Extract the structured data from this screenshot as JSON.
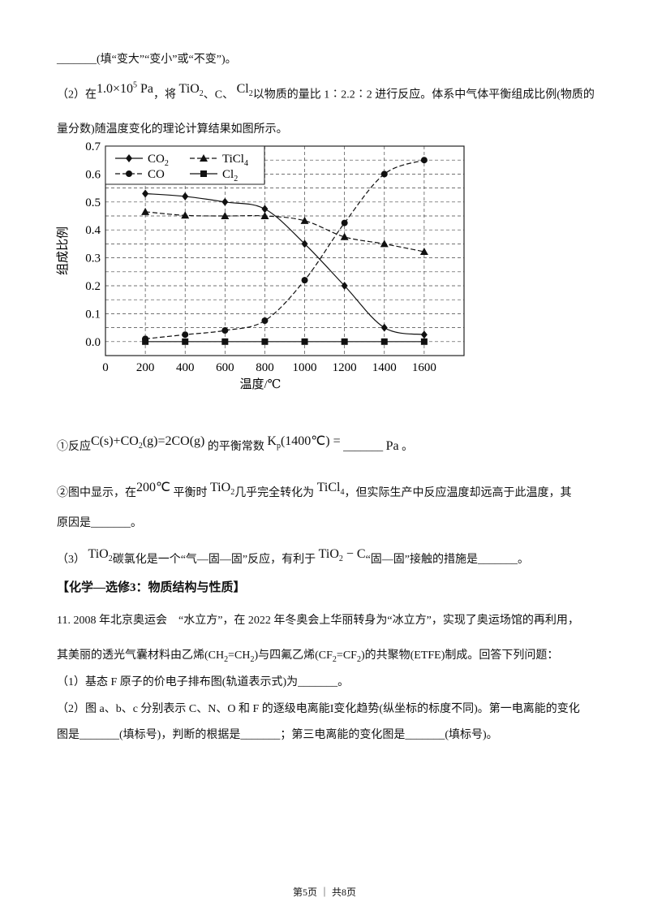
{
  "blank": "_______",
  "line1": {
    "text": "(填“变大”“变小”或“不变”)。"
  },
  "q2": {
    "prefix": "（2）在",
    "pressure": "1.0×10",
    "pressure_exp": "5",
    "pressure_unit": "Pa",
    "sep1": "，将",
    "tio2": "TiO",
    "sub2": "2",
    "sep2": "、C、",
    "cl2": "Cl",
    "rest": "以物质的量比 1∶2.2∶2 进行反应。体系中气体平衡组成比例(物质的",
    "line2": "量分数)随温度变化的理论计算结果如图所示。"
  },
  "chart_data": {
    "type": "line",
    "xlabel": "温度/℃",
    "ylabel": "组成比例",
    "xlim": [
      0,
      1800
    ],
    "ylim": [
      -0.05,
      0.7
    ],
    "x_ticks": [
      "0",
      "200",
      "400",
      "600",
      "800",
      "1000",
      "1200",
      "1400",
      "1600"
    ],
    "y_ticks": [
      "0.0",
      "0.1",
      "0.2",
      "0.3",
      "0.4",
      "0.5",
      "0.6",
      "0.7"
    ],
    "grid": true,
    "legend_position": "top-left",
    "x": [
      200,
      400,
      600,
      800,
      1000,
      1200,
      1400,
      1600
    ],
    "series": [
      {
        "name": "CO2",
        "name_main": "CO",
        "name_sub": "2",
        "marker": "diamond",
        "dash": false,
        "values": [
          0.53,
          0.52,
          0.5,
          0.475,
          0.35,
          0.2,
          0.05,
          0.025
        ]
      },
      {
        "name": "TiCl4",
        "name_main": "TiCl",
        "name_sub": "4",
        "marker": "triangle",
        "dash": true,
        "values": [
          0.465,
          0.452,
          0.45,
          0.45,
          0.433,
          0.375,
          0.35,
          0.322
        ]
      },
      {
        "name": "CO",
        "name_main": "CO",
        "name_sub": "",
        "marker": "circle",
        "dash": true,
        "values": [
          0.01,
          0.025,
          0.04,
          0.075,
          0.22,
          0.425,
          0.6,
          0.65
        ]
      },
      {
        "name": "Cl2",
        "name_main": "Cl",
        "name_sub": "2",
        "marker": "square",
        "dash": false,
        "values": [
          0,
          0,
          0,
          0,
          0,
          0,
          0,
          0
        ]
      }
    ]
  },
  "s1": {
    "prefix": "①反应",
    "eq_a": "C(s)+CO",
    "eq_b": "(g)=2CO(g)",
    "mid": "的平衡常数",
    "kp": "K",
    "kp_sub": "p",
    "kp_arg": "(1400℃) =",
    "unit": "Pa",
    "end": "。"
  },
  "s2": {
    "prefix": "②图中显示，在",
    "temp": "200℃",
    "mid": "平衡时",
    "mid2": "几乎完全转化为",
    "ticl": "TiCl",
    "sub4": "4",
    "rest": "，但实际生产中反应温度却远高于此温度，其",
    "line2": "原因是",
    "end": "。"
  },
  "q3": {
    "prefix": "（3）",
    "mid": "碳氯化是一个“气—固—固”反应，有利于",
    "tio2c": "TiO",
    "c": " − C",
    "rest": "“固—固”接触的措施是",
    "end": "。"
  },
  "section_title": "【化学—选修3：物质结构与性质】",
  "q11": {
    "line1": "11. 2008 年北京奥运会　“水立方”，在 2022 年冬奥会上华丽转身为“冰立方”，实现了奥运场馆的再利用，",
    "line2a": "其美丽的透光气囊材料由乙烯(CH",
    "line2b": "=CH",
    "line2c": ")与四氟乙烯(CF",
    "line2d": "=CF",
    "line2e": ")的共聚物(ETFE)制成。回答下列问题：",
    "p1": "（1）基态 F 原子的价电子排布图(轨道表示式)为",
    "p1_end": "。",
    "p2_line1": "（2）图 a、b、c 分别表示 C、N、O 和 F 的逐级电离能I变化趋势(纵坐标的标度不同)。第一电离能的变化",
    "p2_a": "图是",
    "p2_b": "(填标号)，判断的根据是",
    "p2_c": "；第三电离能的变化图是",
    "p2_d": "(填标号)。"
  },
  "footer": "第5页 ｜ 共8页"
}
